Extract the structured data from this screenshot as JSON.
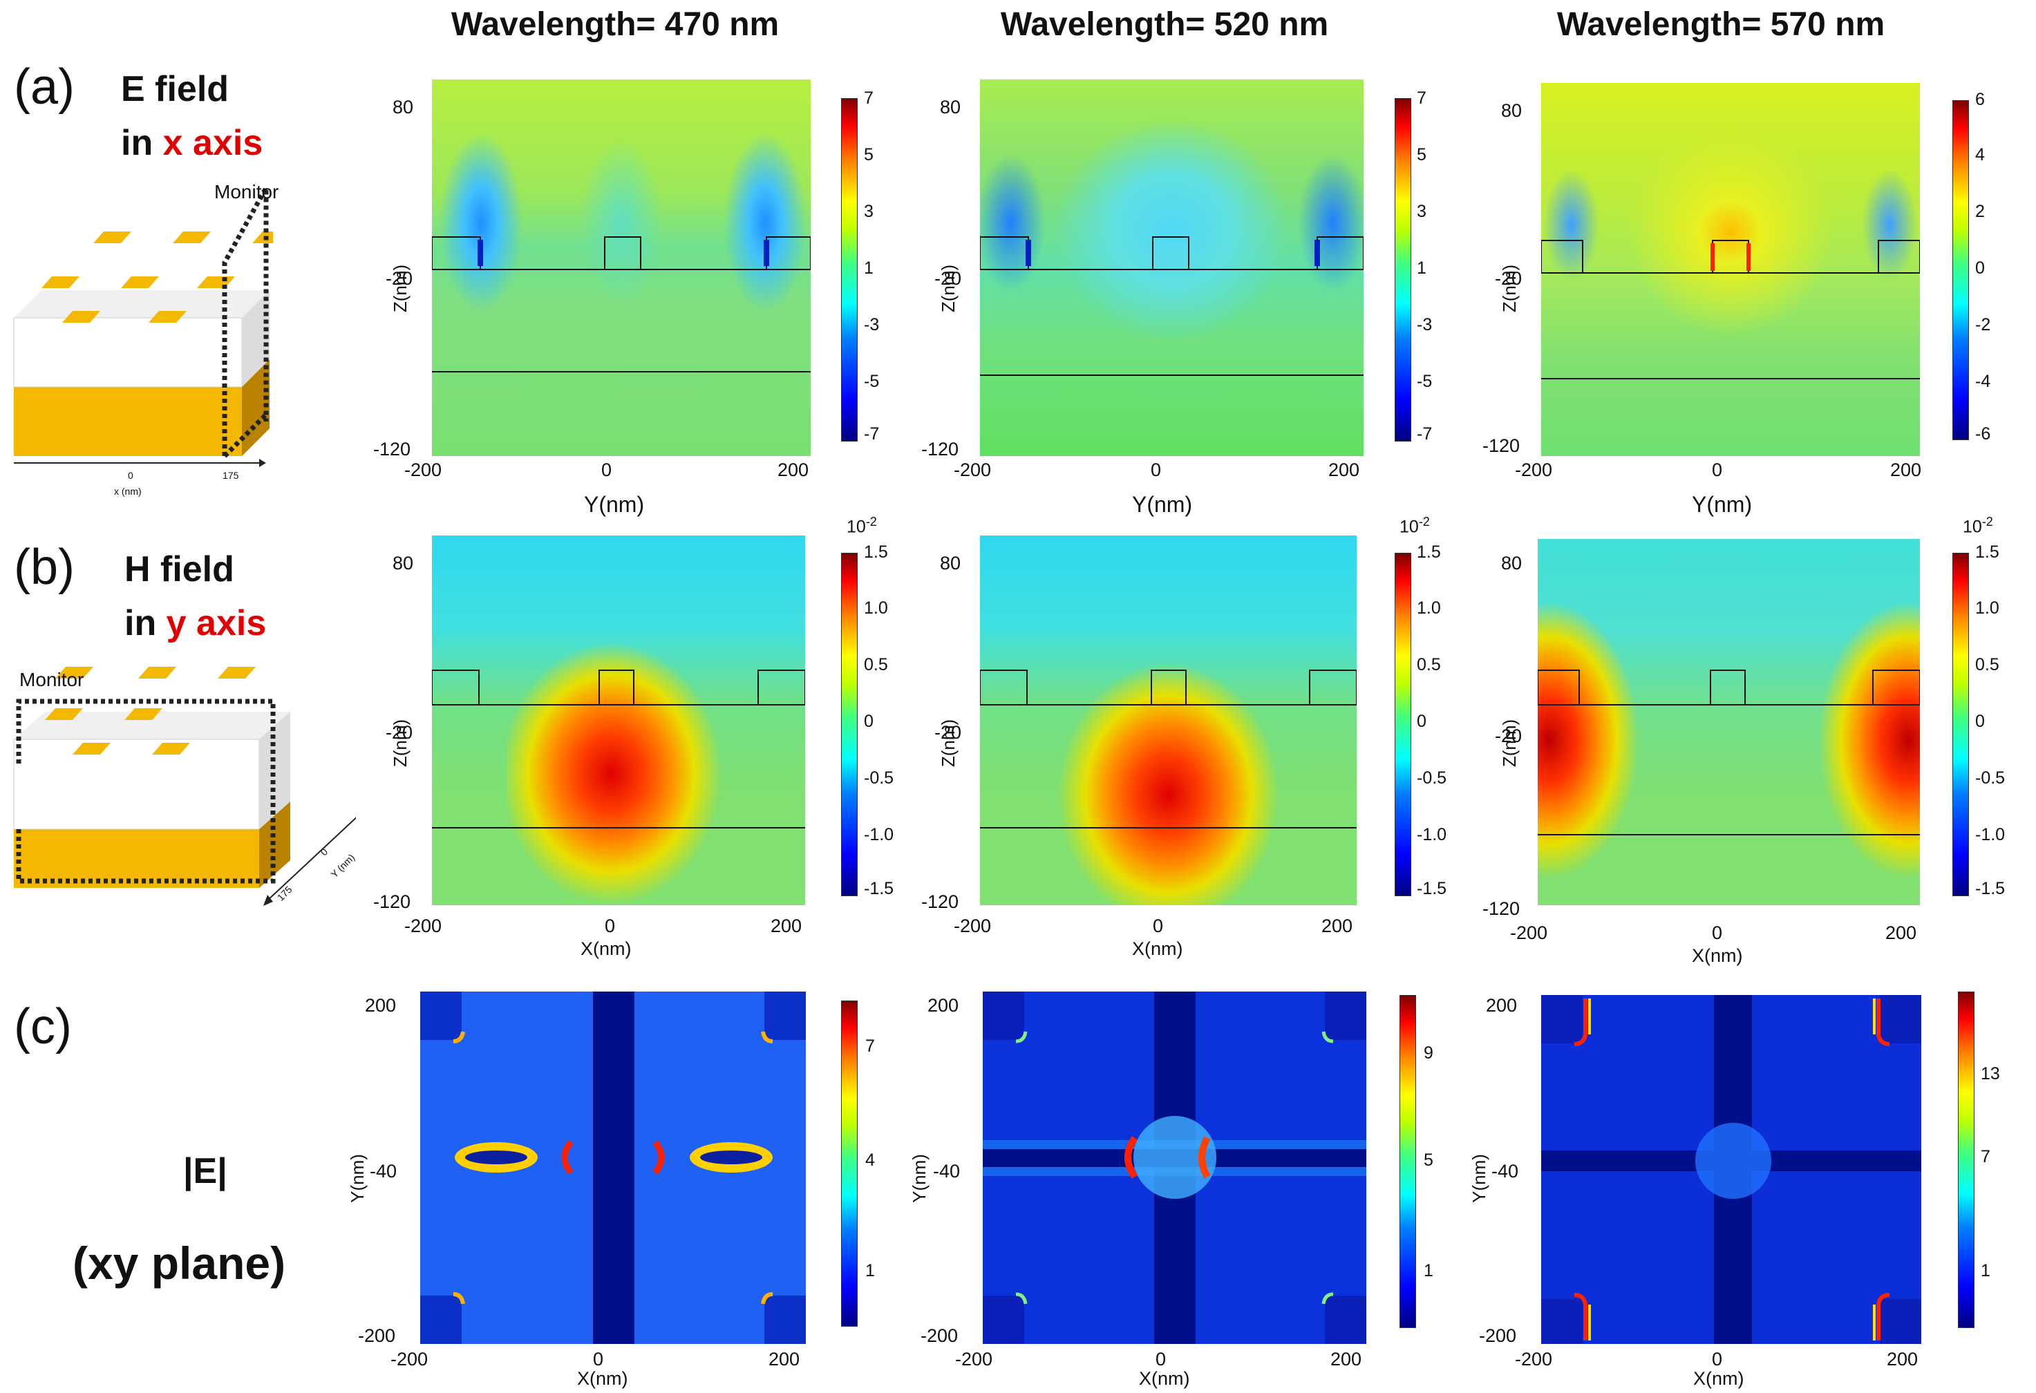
{
  "columns": [
    {
      "title": "Wavelength= 470 nm"
    },
    {
      "title": "Wavelength= 520 nm"
    },
    {
      "title": "Wavelength= 570 nm"
    }
  ],
  "rows": [
    {
      "label": "(a)",
      "line1": "E field",
      "line2_prefix": "in ",
      "line2_axis": "x axis",
      "monitor": "Monitor",
      "xtick0": "0",
      "xtick1": "175",
      "xunit": "x (nm)"
    },
    {
      "label": "(b)",
      "line1": "H field",
      "line2_prefix": "in ",
      "line2_axis": "y axis",
      "monitor": "Monitor",
      "ytick0": "0",
      "ytick1": "175",
      "yunit": "Y (nm)"
    },
    {
      "label": "(c)",
      "line1": "|E|",
      "line2": "(xy plane)"
    }
  ],
  "axes": {
    "row_a": {
      "xlabel": "Y(nm)",
      "ylabel": "Z(nm)",
      "xticks": [
        "-200",
        "0",
        "200"
      ],
      "yticks": [
        "80",
        "-20",
        "-120"
      ]
    },
    "row_b": {
      "xlabel": "X(nm)",
      "ylabel": "Z(nm)",
      "xticks": [
        "-200",
        "0",
        "200"
      ],
      "yticks": [
        "80",
        "-20",
        "-120"
      ],
      "cb_exponent": "10-2"
    },
    "row_c": {
      "xlabel": "X(nm)",
      "ylabel": "Y(nm)",
      "xticks": [
        "-200",
        "0",
        "200"
      ],
      "yticks": [
        "200",
        "-40",
        "-200"
      ]
    }
  },
  "colorbars": {
    "a": [
      [
        "7",
        "5",
        "3",
        "1",
        "-3",
        "-5",
        "-7"
      ],
      [
        "7",
        "5",
        "3",
        "1",
        "-3",
        "-5",
        "-7"
      ],
      [
        "6",
        "4",
        "2",
        "0",
        "-2",
        "-4",
        "-6"
      ]
    ],
    "b": [
      [
        "1.5",
        "1.0",
        "0.5",
        "0",
        "-0.5",
        "-1.0",
        "-1.5"
      ],
      [
        "1.5",
        "1.0",
        "0.5",
        "0",
        "-0.5",
        "-1.0",
        "-1.5"
      ],
      [
        "1.5",
        "1.0",
        "0.5",
        "0",
        "-0.5",
        "-1.0",
        "-1.5"
      ]
    ],
    "c": [
      [
        "7",
        "4",
        "1"
      ],
      [
        "9",
        "5",
        "1"
      ],
      [
        "13",
        "7",
        "1"
      ]
    ]
  },
  "colors": {
    "accent_red": "#e00000",
    "gold": "#f5b800"
  }
}
